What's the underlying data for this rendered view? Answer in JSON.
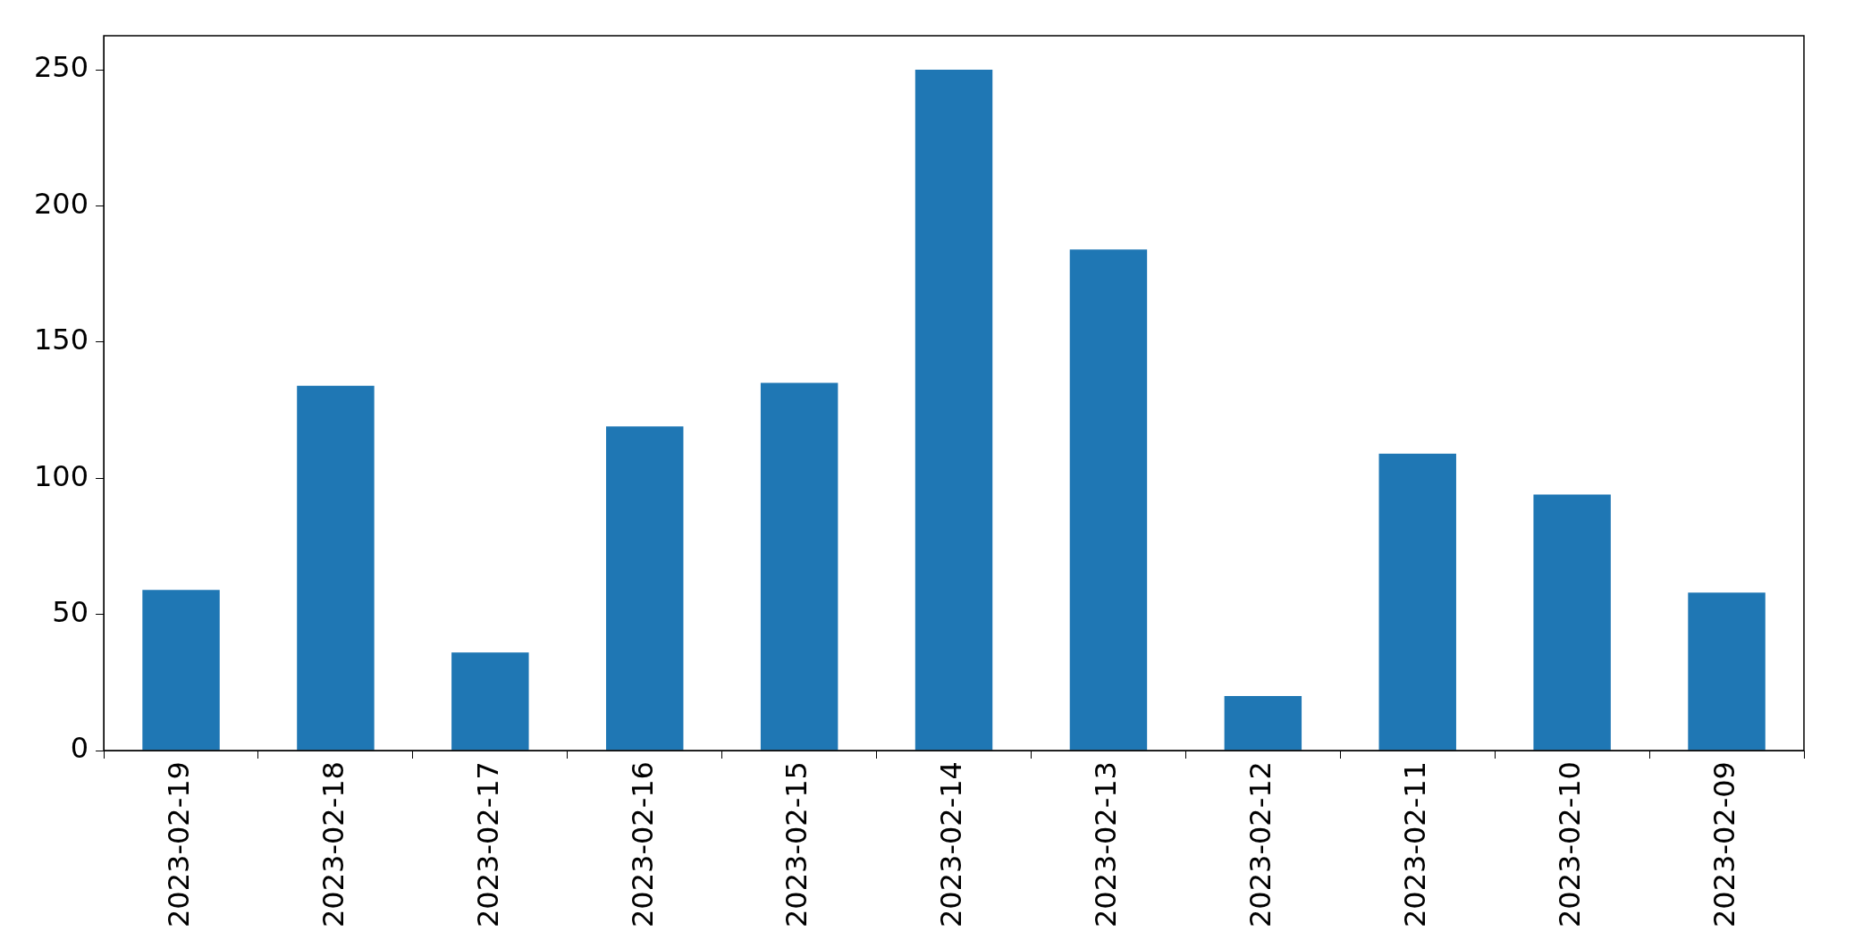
{
  "chart_data": {
    "type": "bar",
    "categories": [
      "2023-02-19",
      "2023-02-18",
      "2023-02-17",
      "2023-02-16",
      "2023-02-15",
      "2023-02-14",
      "2023-02-13",
      "2023-02-12",
      "2023-02-11",
      "2023-02-10",
      "2023-02-09"
    ],
    "values": [
      59,
      134,
      36,
      119,
      135,
      250,
      184,
      20,
      109,
      94,
      58
    ],
    "color": "#1f77b4",
    "ylim": [
      0,
      262.5
    ],
    "yticks": [
      0,
      50,
      100,
      150,
      200,
      250
    ],
    "grid": false,
    "legend": false
  }
}
